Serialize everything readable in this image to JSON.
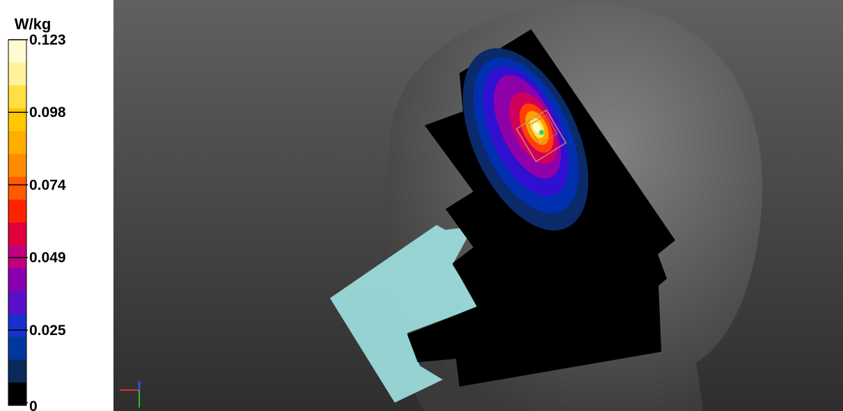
{
  "colorbar": {
    "unit": "W/kg",
    "ticks": [
      "0.123",
      "0.098",
      "0.074",
      "0.049",
      "0.025",
      "0"
    ]
  }
}
